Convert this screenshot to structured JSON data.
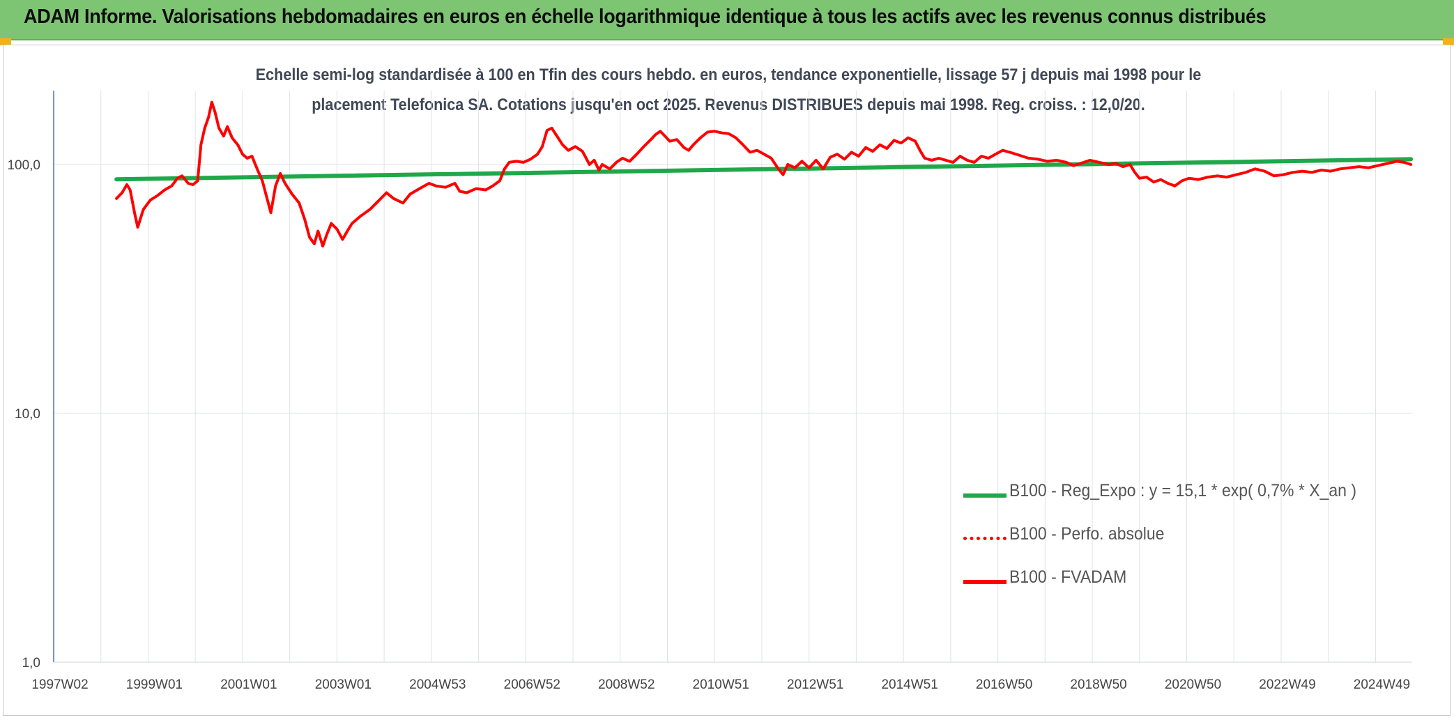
{
  "banner": {
    "title": "ADAM Informe. Valorisations hebdomadaires en euros en échelle logarithmique identique à tous les actifs avec les revenus connus distribués"
  },
  "colors": {
    "banner": "#7dc573",
    "trend": "#1fa84a",
    "fvadam": "#ff0000",
    "perfo": "#ff0000",
    "corner": "#f3b318"
  },
  "chart_data": {
    "type": "line",
    "title": "Echelle semi-log standardisée à 100 en Tfin des cours hebdo. en euros, tendance exponentielle, lissage 57 j depuis mai 1998 pour le placement Telefonica SA. Cotations jusqu'en oct 2025. Revenus DISTRIBUES depuis mai 1998. Reg. croiss. : 12,0/20.",
    "y_scale": "log",
    "ylim": [
      1,
      200
    ],
    "y_ticks": [
      {
        "value": 1,
        "label": "1,0"
      },
      {
        "value": 10,
        "label": "10,0"
      },
      {
        "value": 100,
        "label": "100,0"
      }
    ],
    "xlim": [
      1997.0,
      2025.75
    ],
    "x_ticks": [
      {
        "value": 1997.0,
        "label": "1997W02"
      },
      {
        "value": 1999.0,
        "label": "1999W01"
      },
      {
        "value": 2001.0,
        "label": "2001W01"
      },
      {
        "value": 2003.0,
        "label": "2003W01"
      },
      {
        "value": 2005.0,
        "label": "2004W53"
      },
      {
        "value": 2007.0,
        "label": "2006W52"
      },
      {
        "value": 2009.0,
        "label": "2008W52"
      },
      {
        "value": 2011.0,
        "label": "2010W51"
      },
      {
        "value": 2013.0,
        "label": "2012W51"
      },
      {
        "value": 2015.0,
        "label": "2014W51"
      },
      {
        "value": 2017.0,
        "label": "2016W50"
      },
      {
        "value": 2019.0,
        "label": "2018W50"
      },
      {
        "value": 2021.0,
        "label": "2020W50"
      },
      {
        "value": 2023.0,
        "label": "2022W49"
      },
      {
        "value": 2025.0,
        "label": "2024W49"
      }
    ],
    "grid": {
      "vertical": true,
      "horizontal": true
    },
    "legend_position": "lower-right",
    "series": [
      {
        "name": "B100 - Reg_Expo : y = 15,1 * exp( 0,7% * X_an )",
        "style": "solid-green",
        "points": [
          [
            1998.33,
            87.2
          ],
          [
            2025.75,
            105.0
          ]
        ]
      },
      {
        "name": "B100 - Perfo. absolue",
        "style": "dotted-red",
        "points": []
      },
      {
        "name": "B100 - FVADAM",
        "style": "solid-red",
        "points": [
          [
            1998.33,
            73
          ],
          [
            1998.45,
            77
          ],
          [
            1998.55,
            83
          ],
          [
            1998.62,
            79
          ],
          [
            1998.72,
            63
          ],
          [
            1998.78,
            56
          ],
          [
            1998.9,
            66
          ],
          [
            1999.05,
            72
          ],
          [
            1999.2,
            75
          ],
          [
            1999.35,
            79
          ],
          [
            1999.5,
            82
          ],
          [
            1999.62,
            88
          ],
          [
            1999.72,
            90
          ],
          [
            1999.85,
            84
          ],
          [
            1999.95,
            83
          ],
          [
            2000.05,
            86
          ],
          [
            2000.12,
            120
          ],
          [
            2000.2,
            140
          ],
          [
            2000.28,
            155
          ],
          [
            2000.35,
            178
          ],
          [
            2000.42,
            162
          ],
          [
            2000.5,
            140
          ],
          [
            2000.6,
            130
          ],
          [
            2000.68,
            142
          ],
          [
            2000.78,
            128
          ],
          [
            2000.9,
            120
          ],
          [
            2001.0,
            110
          ],
          [
            2001.1,
            106
          ],
          [
            2001.2,
            108
          ],
          [
            2001.32,
            95
          ],
          [
            2001.42,
            86
          ],
          [
            2001.52,
            73
          ],
          [
            2001.6,
            64
          ],
          [
            2001.7,
            82
          ],
          [
            2001.8,
            92
          ],
          [
            2001.9,
            84
          ],
          [
            2002.05,
            76
          ],
          [
            2002.2,
            70
          ],
          [
            2002.32,
            60
          ],
          [
            2002.42,
            51
          ],
          [
            2002.52,
            48
          ],
          [
            2002.6,
            54
          ],
          [
            2002.7,
            47
          ],
          [
            2002.78,
            52
          ],
          [
            2002.88,
            58
          ],
          [
            2003.0,
            55
          ],
          [
            2003.12,
            50
          ],
          [
            2003.22,
            54
          ],
          [
            2003.32,
            58
          ],
          [
            2003.5,
            62
          ],
          [
            2003.7,
            66
          ],
          [
            2003.9,
            72
          ],
          [
            2004.05,
            77
          ],
          [
            2004.2,
            73
          ],
          [
            2004.4,
            70
          ],
          [
            2004.55,
            76
          ],
          [
            2004.75,
            80
          ],
          [
            2004.95,
            84
          ],
          [
            2005.1,
            82
          ],
          [
            2005.3,
            81
          ],
          [
            2005.5,
            84
          ],
          [
            2005.6,
            78
          ],
          [
            2005.75,
            77
          ],
          [
            2005.95,
            80
          ],
          [
            2006.15,
            79
          ],
          [
            2006.3,
            82
          ],
          [
            2006.45,
            86
          ],
          [
            2006.55,
            96
          ],
          [
            2006.65,
            102
          ],
          [
            2006.8,
            103
          ],
          [
            2006.95,
            102
          ],
          [
            2007.1,
            105
          ],
          [
            2007.25,
            110
          ],
          [
            2007.35,
            118
          ],
          [
            2007.45,
            137
          ],
          [
            2007.55,
            140
          ],
          [
            2007.65,
            131
          ],
          [
            2007.78,
            120
          ],
          [
            2007.9,
            114
          ],
          [
            2008.05,
            118
          ],
          [
            2008.2,
            113
          ],
          [
            2008.35,
            100
          ],
          [
            2008.45,
            104
          ],
          [
            2008.55,
            95
          ],
          [
            2008.62,
            100
          ],
          [
            2008.78,
            96
          ],
          [
            2008.92,
            102
          ],
          [
            2009.05,
            106
          ],
          [
            2009.2,
            103
          ],
          [
            2009.35,
            110
          ],
          [
            2009.5,
            118
          ],
          [
            2009.65,
            126
          ],
          [
            2009.75,
            132
          ],
          [
            2009.85,
            136
          ],
          [
            2009.95,
            130
          ],
          [
            2010.05,
            124
          ],
          [
            2010.2,
            126
          ],
          [
            2010.35,
            117
          ],
          [
            2010.45,
            114
          ],
          [
            2010.55,
            120
          ],
          [
            2010.7,
            128
          ],
          [
            2010.85,
            135
          ],
          [
            2011.0,
            136
          ],
          [
            2011.15,
            134
          ],
          [
            2011.3,
            133
          ],
          [
            2011.45,
            128
          ],
          [
            2011.6,
            120
          ],
          [
            2011.75,
            112
          ],
          [
            2011.9,
            114
          ],
          [
            2012.05,
            110
          ],
          [
            2012.2,
            106
          ],
          [
            2012.35,
            96
          ],
          [
            2012.45,
            91
          ],
          [
            2012.55,
            100
          ],
          [
            2012.7,
            97
          ],
          [
            2012.85,
            103
          ],
          [
            2013.0,
            97
          ],
          [
            2013.15,
            104
          ],
          [
            2013.3,
            96
          ],
          [
            2013.45,
            107
          ],
          [
            2013.6,
            110
          ],
          [
            2013.75,
            105
          ],
          [
            2013.9,
            112
          ],
          [
            2014.05,
            108
          ],
          [
            2014.2,
            117
          ],
          [
            2014.35,
            113
          ],
          [
            2014.5,
            120
          ],
          [
            2014.65,
            116
          ],
          [
            2014.8,
            125
          ],
          [
            2014.95,
            122
          ],
          [
            2015.1,
            128
          ],
          [
            2015.25,
            124
          ],
          [
            2015.35,
            114
          ],
          [
            2015.45,
            106
          ],
          [
            2015.6,
            104
          ],
          [
            2015.75,
            106
          ],
          [
            2015.9,
            104
          ],
          [
            2016.05,
            102
          ],
          [
            2016.2,
            108
          ],
          [
            2016.35,
            104
          ],
          [
            2016.5,
            102
          ],
          [
            2016.65,
            108
          ],
          [
            2016.8,
            106
          ],
          [
            2016.95,
            110
          ],
          [
            2017.1,
            114
          ],
          [
            2017.25,
            112
          ],
          [
            2017.45,
            109
          ],
          [
            2017.65,
            106
          ],
          [
            2017.85,
            105
          ],
          [
            2018.05,
            103
          ],
          [
            2018.25,
            104
          ],
          [
            2018.45,
            102
          ],
          [
            2018.6,
            99
          ],
          [
            2018.75,
            101
          ],
          [
            2018.95,
            104
          ],
          [
            2019.15,
            102
          ],
          [
            2019.35,
            100
          ],
          [
            2019.5,
            101
          ],
          [
            2019.65,
            98
          ],
          [
            2019.8,
            100
          ],
          [
            2019.9,
            93
          ],
          [
            2020.0,
            88
          ],
          [
            2020.15,
            89
          ],
          [
            2020.3,
            85
          ],
          [
            2020.45,
            87
          ],
          [
            2020.6,
            84
          ],
          [
            2020.75,
            82
          ],
          [
            2020.9,
            86
          ],
          [
            2021.05,
            88
          ],
          [
            2021.25,
            87
          ],
          [
            2021.45,
            89
          ],
          [
            2021.65,
            90
          ],
          [
            2021.85,
            89
          ],
          [
            2022.05,
            91
          ],
          [
            2022.25,
            93
          ],
          [
            2022.45,
            96
          ],
          [
            2022.65,
            94
          ],
          [
            2022.85,
            90
          ],
          [
            2023.05,
            91
          ],
          [
            2023.25,
            93
          ],
          [
            2023.45,
            94
          ],
          [
            2023.65,
            93
          ],
          [
            2023.85,
            95
          ],
          [
            2024.05,
            94
          ],
          [
            2024.25,
            96
          ],
          [
            2024.45,
            97
          ],
          [
            2024.65,
            98
          ],
          [
            2024.85,
            97
          ],
          [
            2025.05,
            99
          ],
          [
            2025.25,
            101
          ],
          [
            2025.45,
            103
          ],
          [
            2025.6,
            102
          ],
          [
            2025.75,
            100
          ]
        ]
      }
    ]
  }
}
